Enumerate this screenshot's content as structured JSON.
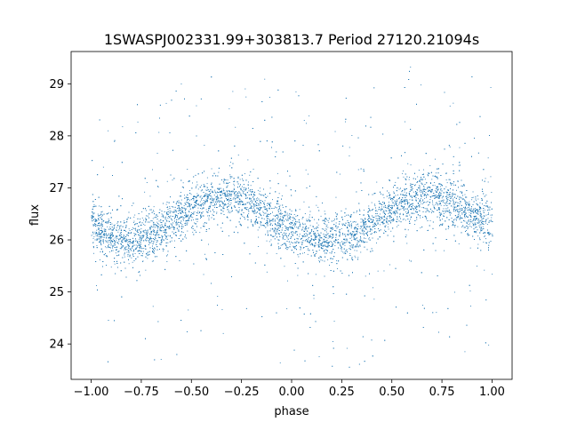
{
  "chart_data": {
    "type": "scatter",
    "title": "1SWASPJ002331.99+303813.7 Period 27120.21094s",
    "xlabel": "phase",
    "ylabel": "flux",
    "xlim": [
      -1.1,
      1.1
    ],
    "ylim": [
      23.32,
      29.62
    ],
    "xticks": [
      -1.0,
      -0.75,
      -0.5,
      -0.25,
      0.0,
      0.25,
      0.5,
      0.75,
      1.0
    ],
    "xtick_labels": [
      "−1.00",
      "−0.75",
      "−0.50",
      "−0.25",
      "0.00",
      "0.25",
      "0.50",
      "0.75",
      "1.00"
    ],
    "yticks": [
      24,
      25,
      26,
      27,
      28,
      29
    ],
    "ytick_labels": [
      "24",
      "25",
      "26",
      "27",
      "28",
      "29"
    ],
    "grid": false,
    "marker_color": "#1f77b4",
    "series": [
      {
        "points": [
          [
            -1.0,
            26.28
          ],
          [
            -0.9,
            26.05
          ],
          [
            -0.8,
            26.0
          ],
          [
            -0.7,
            26.1
          ],
          [
            -0.6,
            26.35
          ],
          [
            -0.5,
            26.6
          ],
          [
            -0.4,
            26.78
          ],
          [
            -0.3,
            26.85
          ],
          [
            -0.2,
            26.72
          ],
          [
            -0.1,
            26.42
          ],
          [
            0.0,
            26.2
          ],
          [
            0.1,
            26.03
          ],
          [
            0.2,
            26.0
          ],
          [
            0.3,
            26.12
          ],
          [
            0.4,
            26.38
          ],
          [
            0.5,
            26.6
          ],
          [
            0.6,
            26.78
          ],
          [
            0.7,
            26.87
          ],
          [
            0.8,
            26.7
          ],
          [
            0.9,
            26.45
          ],
          [
            1.0,
            26.3
          ]
        ]
      }
    ]
  }
}
